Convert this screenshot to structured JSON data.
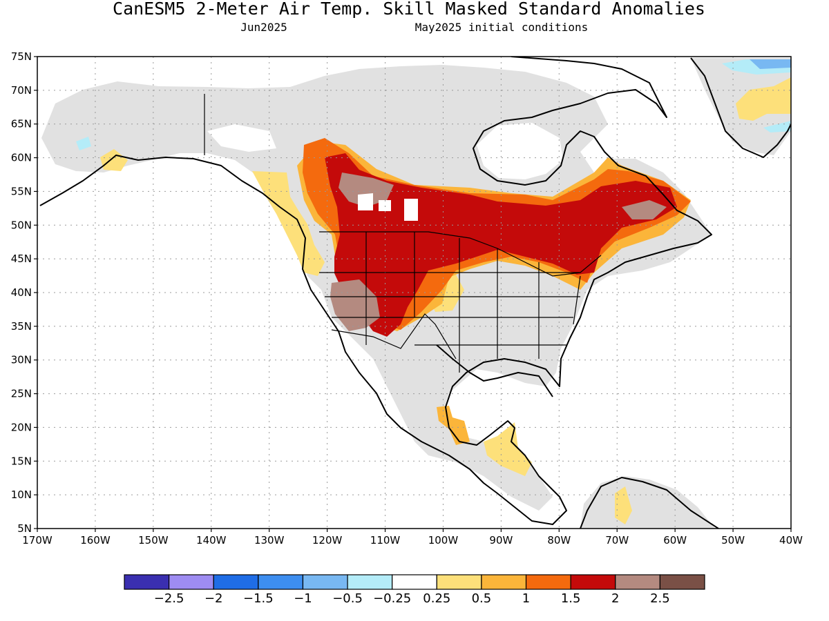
{
  "title": "CanESM5 2-Meter Air Temp. Skill Masked Standard Anomalies",
  "forecast_month": "Jun2025",
  "initial_conditions": "May2025 initial conditions",
  "map": {
    "projection": "cylindrical equidistant",
    "lon_range": [
      -170,
      -40
    ],
    "lat_range": [
      5,
      75
    ],
    "lat_ticks": [
      "5N",
      "10N",
      "15N",
      "20N",
      "25N",
      "30N",
      "35N",
      "40N",
      "45N",
      "50N",
      "55N",
      "60N",
      "65N",
      "70N",
      "75N"
    ],
    "lon_ticks": [
      "170W",
      "160W",
      "150W",
      "140W",
      "130W",
      "120W",
      "110W",
      "100W",
      "90W",
      "80W",
      "70W",
      "60W",
      "50W",
      "40W"
    ],
    "mask_color": "#e1e1e1",
    "regions": [
      {
        "name": "warm-interior-west",
        "category": "2.0-2.5"
      },
      {
        "name": "warm-northern-plains",
        "category": "1.5-2.0"
      },
      {
        "name": "warm-canada-east",
        "category": "1.5-2.0"
      },
      {
        "name": "cool-greenland",
        "category": "-1.5 to -0.5"
      }
    ]
  },
  "colorbar": {
    "colors": [
      "#3a2fb0",
      "#9e8cf2",
      "#1f6de6",
      "#3d8ef0",
      "#78b8f2",
      "#b4ecf8",
      "#ffffff",
      "#fde07a",
      "#fbb53a",
      "#f46a0e",
      "#c40a0a",
      "#b48a80",
      "#7a5046"
    ],
    "labels": [
      "−2.5",
      "−2",
      "−1.5",
      "−1",
      "−0.5",
      "−0.25",
      "0.25",
      "0.5",
      "1",
      "1.5",
      "2",
      "2.5"
    ]
  }
}
